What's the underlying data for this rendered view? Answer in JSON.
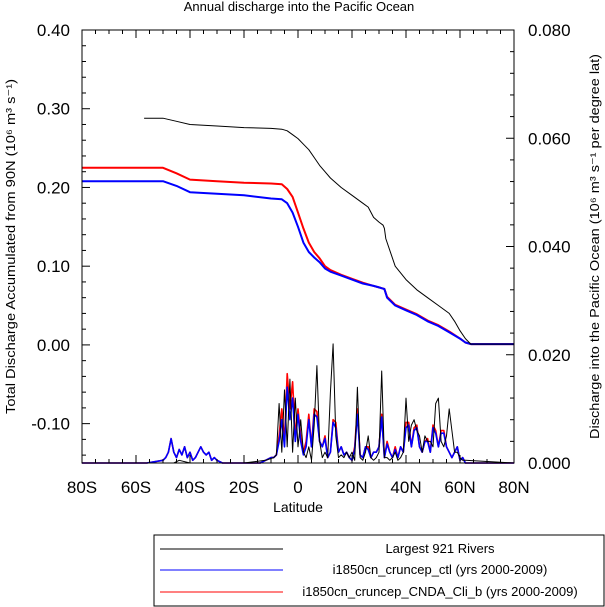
{
  "chart_data": {
    "type": "line",
    "title": "Annual discharge into the Pacific Ocean",
    "xlabel": "Latitude",
    "ylabel_left": "Total Discharge Accumulated from 90N (10⁶ m³ s⁻¹)",
    "ylabel_right": "Discharge into the Pacific Ocean (10⁶ m³ s⁻¹ per degree lat)",
    "xlim": [
      -80,
      80
    ],
    "ylim_left": [
      -0.15,
      0.4
    ],
    "ylim_right": [
      0.0,
      0.08
    ],
    "x_ticks": [
      {
        "value": -80,
        "label": "80S"
      },
      {
        "value": -60,
        "label": "60S"
      },
      {
        "value": -40,
        "label": "40S"
      },
      {
        "value": -20,
        "label": "20S"
      },
      {
        "value": 0,
        "label": "0"
      },
      {
        "value": 20,
        "label": "20N"
      },
      {
        "value": 40,
        "label": "40N"
      },
      {
        "value": 60,
        "label": "60N"
      },
      {
        "value": 80,
        "label": "80N"
      }
    ],
    "y_ticks_left": [
      {
        "value": 0.4,
        "label": "0.40"
      },
      {
        "value": 0.3,
        "label": "0.30"
      },
      {
        "value": 0.2,
        "label": "0.20"
      },
      {
        "value": 0.1,
        "label": "0.10"
      },
      {
        "value": 0.0,
        "label": "0.00"
      },
      {
        "value": -0.1,
        "label": "-0.10"
      }
    ],
    "y_ticks_right": [
      {
        "value": 0.08,
        "label": "0.080"
      },
      {
        "value": 0.06,
        "label": "0.060"
      },
      {
        "value": 0.04,
        "label": "0.040"
      },
      {
        "value": 0.02,
        "label": "0.020"
      },
      {
        "value": 0.0,
        "label": "0.000"
      }
    ],
    "legend_position": "bottom-right",
    "series": [
      {
        "name": "Largest 921 Rivers",
        "color": "#000000",
        "accumulated": {
          "x": [
            -57,
            -50,
            -45,
            -40,
            -30,
            -20,
            -10,
            -6,
            -4,
            -2,
            0,
            2,
            4,
            6,
            8,
            10,
            12,
            16,
            20,
            24,
            26,
            28,
            30,
            31.5,
            32,
            32.5,
            36,
            40,
            44,
            48,
            52,
            56,
            58,
            60,
            62,
            64,
            80
          ],
          "y": [
            0.288,
            0.288,
            0.284,
            0.28,
            0.278,
            0.276,
            0.275,
            0.274,
            0.272,
            0.267,
            0.262,
            0.255,
            0.248,
            0.238,
            0.228,
            0.22,
            0.212,
            0.2,
            0.19,
            0.18,
            0.175,
            0.162,
            0.156,
            0.152,
            0.148,
            0.135,
            0.1,
            0.083,
            0.07,
            0.06,
            0.05,
            0.04,
            0.03,
            0.018,
            0.008,
            0.001,
            0.001
          ]
        },
        "per_degree": {
          "x": [
            -80,
            -46,
            -44,
            -40,
            -30,
            -20,
            -12,
            -9,
            -8,
            -7,
            -6,
            -5,
            -4,
            -3,
            -2,
            -1,
            0,
            1,
            2,
            3,
            4,
            5,
            6,
            7,
            8,
            9,
            10,
            11,
            12,
            13,
            14,
            15,
            16,
            17,
            18,
            19,
            20,
            21,
            22,
            23,
            24,
            25,
            26,
            27,
            28,
            29,
            30,
            31,
            32,
            33,
            34,
            35,
            36,
            37,
            38,
            39,
            40,
            41,
            42,
            43,
            44,
            45,
            46,
            47,
            48,
            49,
            50,
            51,
            52,
            53,
            54,
            55,
            56,
            57,
            58,
            59,
            60,
            61,
            62,
            80
          ],
          "y": [
            0,
            0,
            0.0005,
            0,
            0,
            0,
            0.0005,
            0.001,
            0.0015,
            0.011,
            0.002,
            0.0135,
            0.003,
            0.0155,
            0.002,
            0.012,
            0.003,
            0.008,
            0.002,
            0.001,
            0.003,
            0.0005,
            0.007,
            0.018,
            0.004,
            0.001,
            0.002,
            0.001,
            0.013,
            0.022,
            0.005,
            0.001,
            0.0015,
            0.001,
            0.002,
            0.001,
            0.002,
            0.0005,
            0.014,
            0.001,
            0.0005,
            0.002,
            0.005,
            0.001,
            0.0005,
            0.001,
            0.002,
            0.017,
            0.001,
            0.001,
            0.0005,
            0.001,
            0.002,
            0.0005,
            0.001,
            0.002,
            0.012,
            0.004,
            0.007,
            0.008,
            0.006,
            0.005,
            0.002,
            0.005,
            0.004,
            0.004,
            0.003,
            0.011,
            0.012,
            0.004,
            0.003,
            0.005,
            0.01,
            0.006,
            0.002,
            0.002,
            0.001,
            0.0005,
            0.0005,
            0
          ]
        }
      },
      {
        "name": "i1850cn_cruncep_ctl (yrs 2000-2009)",
        "color": "#0000ff",
        "accumulated": {
          "x": [
            -80,
            -50,
            -45,
            -40,
            -30,
            -20,
            -10,
            -6,
            -4,
            -2,
            0,
            2,
            4,
            6,
            8,
            10,
            12,
            16,
            20,
            24,
            28,
            30,
            31,
            32,
            33,
            36,
            40,
            44,
            48,
            52,
            56,
            60,
            62,
            64,
            80
          ],
          "y": [
            0.208,
            0.208,
            0.202,
            0.194,
            0.192,
            0.19,
            0.186,
            0.185,
            0.18,
            0.168,
            0.15,
            0.13,
            0.118,
            0.111,
            0.105,
            0.097,
            0.093,
            0.088,
            0.083,
            0.078,
            0.075,
            0.073,
            0.072,
            0.071,
            0.06,
            0.05,
            0.044,
            0.038,
            0.03,
            0.024,
            0.016,
            0.008,
            0.003,
            0.001,
            0.001
          ]
        },
        "per_degree": {
          "x": [
            -80,
            -56,
            -50,
            -49,
            -48,
            -47,
            -46,
            -45,
            -44,
            -43,
            -42,
            -41,
            -40,
            -39,
            -38,
            -37,
            -36,
            -35,
            -34,
            -33,
            -32,
            -31,
            -30,
            -28,
            -20,
            -14,
            -12,
            -10,
            -9,
            -8,
            -7,
            -6,
            -5,
            -4,
            -3,
            -2,
            -1,
            0,
            1,
            2,
            3,
            4,
            5,
            6,
            7,
            8,
            9,
            10,
            11,
            12,
            13,
            14,
            15,
            16,
            17,
            18,
            19,
            20,
            21,
            22,
            23,
            24,
            25,
            26,
            27,
            28,
            29,
            30,
            31,
            32,
            33,
            34,
            35,
            36,
            37,
            38,
            39,
            40,
            41,
            42,
            43,
            44,
            45,
            46,
            47,
            48,
            49,
            50,
            51,
            52,
            53,
            54,
            55,
            56,
            57,
            58,
            59,
            60,
            61,
            62,
            80
          ],
          "y": [
            0,
            0,
            0.0005,
            0.001,
            0.002,
            0.0045,
            0.002,
            0.001,
            0.0025,
            0.0015,
            0.003,
            0.001,
            0.002,
            0.0005,
            0.001,
            0.002,
            0.003,
            0.002,
            0.0015,
            0.002,
            0.0005,
            0.001,
            0.0005,
            0,
            0,
            0,
            0.0005,
            0.001,
            0.001,
            0.0015,
            0.004,
            0.008,
            0.003,
            0.014,
            0.008,
            0.012,
            0.004,
            0.009,
            0.004,
            0.0015,
            0.003,
            0.008,
            0.003,
            0.009,
            0.0085,
            0.004,
            0.003,
            0.0045,
            0.001,
            0.002,
            0.0075,
            0.0065,
            0.002,
            0.003,
            0.0015,
            0.002,
            0.001,
            0.0005,
            0.0025,
            0.009,
            0.0015,
            0.001,
            0.003,
            0.0025,
            0.001,
            0.002,
            0.002,
            0.003,
            0.0085,
            0.001,
            0.0035,
            0.002,
            0.001,
            0.0025,
            0.001,
            0.003,
            0.002,
            0.0065,
            0.007,
            0.003,
            0.006,
            0.0065,
            0.003,
            0.002,
            0.004,
            0.004,
            0.002,
            0.0065,
            0.0055,
            0.003,
            0.0055,
            0.0055,
            0.003,
            0.002,
            0.001,
            0.002,
            0.003,
            0.0005,
            0.001,
            0,
            0
          ]
        }
      },
      {
        "name": "i1850cn_cruncep_CNDA_Cli_b (yrs 2000-2009)",
        "color": "#ff0000",
        "accumulated": {
          "x": [
            -80,
            -50,
            -45,
            -40,
            -30,
            -20,
            -10,
            -6,
            -4,
            -2,
            0,
            2,
            4,
            6,
            8,
            10,
            12,
            16,
            20,
            24,
            28,
            30,
            31,
            32,
            33,
            36,
            40,
            44,
            48,
            52,
            56,
            60,
            62,
            64,
            80
          ],
          "y": [
            0.225,
            0.225,
            0.218,
            0.21,
            0.208,
            0.206,
            0.205,
            0.204,
            0.198,
            0.188,
            0.168,
            0.148,
            0.13,
            0.118,
            0.11,
            0.1,
            0.095,
            0.089,
            0.084,
            0.079,
            0.075,
            0.073,
            0.072,
            0.071,
            0.061,
            0.051,
            0.045,
            0.039,
            0.031,
            0.025,
            0.017,
            0.008,
            0.003,
            0.001,
            0.001
          ]
        },
        "per_degree": {
          "x": [
            -80,
            -56,
            -50,
            -49,
            -48,
            -47,
            -46,
            -45,
            -44,
            -43,
            -42,
            -41,
            -40,
            -39,
            -38,
            -37,
            -36,
            -35,
            -34,
            -33,
            -32,
            -31,
            -30,
            -28,
            -20,
            -14,
            -12,
            -10,
            -9,
            -8,
            -7,
            -6,
            -5,
            -4,
            -3,
            -2,
            -1,
            0,
            1,
            2,
            3,
            4,
            5,
            6,
            7,
            8,
            9,
            10,
            11,
            12,
            13,
            14,
            15,
            16,
            17,
            18,
            19,
            20,
            21,
            22,
            23,
            24,
            25,
            26,
            27,
            28,
            29,
            30,
            31,
            32,
            33,
            34,
            35,
            36,
            37,
            38,
            39,
            40,
            41,
            42,
            43,
            44,
            45,
            46,
            47,
            48,
            49,
            50,
            51,
            52,
            53,
            54,
            55,
            56,
            57,
            58,
            59,
            60,
            61,
            62,
            80
          ],
          "y": [
            0,
            0,
            0.0005,
            0.001,
            0.002,
            0.0045,
            0.002,
            0.001,
            0.0025,
            0.0015,
            0.003,
            0.001,
            0.002,
            0.0005,
            0.001,
            0.002,
            0.003,
            0.002,
            0.0015,
            0.002,
            0.0005,
            0.001,
            0.0005,
            0,
            0,
            0,
            0.0005,
            0.001,
            0.001,
            0.0015,
            0.005,
            0.01,
            0.004,
            0.0165,
            0.01,
            0.015,
            0.005,
            0.01,
            0.005,
            0.002,
            0.004,
            0.009,
            0.003,
            0.01,
            0.0095,
            0.004,
            0.003,
            0.005,
            0.001,
            0.002,
            0.008,
            0.0075,
            0.002,
            0.003,
            0.0015,
            0.002,
            0.001,
            0.0005,
            0.003,
            0.01,
            0.0015,
            0.001,
            0.003,
            0.003,
            0.001,
            0.002,
            0.002,
            0.003,
            0.009,
            0.001,
            0.004,
            0.002,
            0.001,
            0.003,
            0.001,
            0.003,
            0.002,
            0.0075,
            0.0075,
            0.003,
            0.0065,
            0.007,
            0.003,
            0.002,
            0.004,
            0.0045,
            0.002,
            0.007,
            0.006,
            0.003,
            0.006,
            0.006,
            0.003,
            0.002,
            0.001,
            0.002,
            0.003,
            0.0005,
            0.001,
            0,
            0
          ]
        }
      }
    ]
  }
}
